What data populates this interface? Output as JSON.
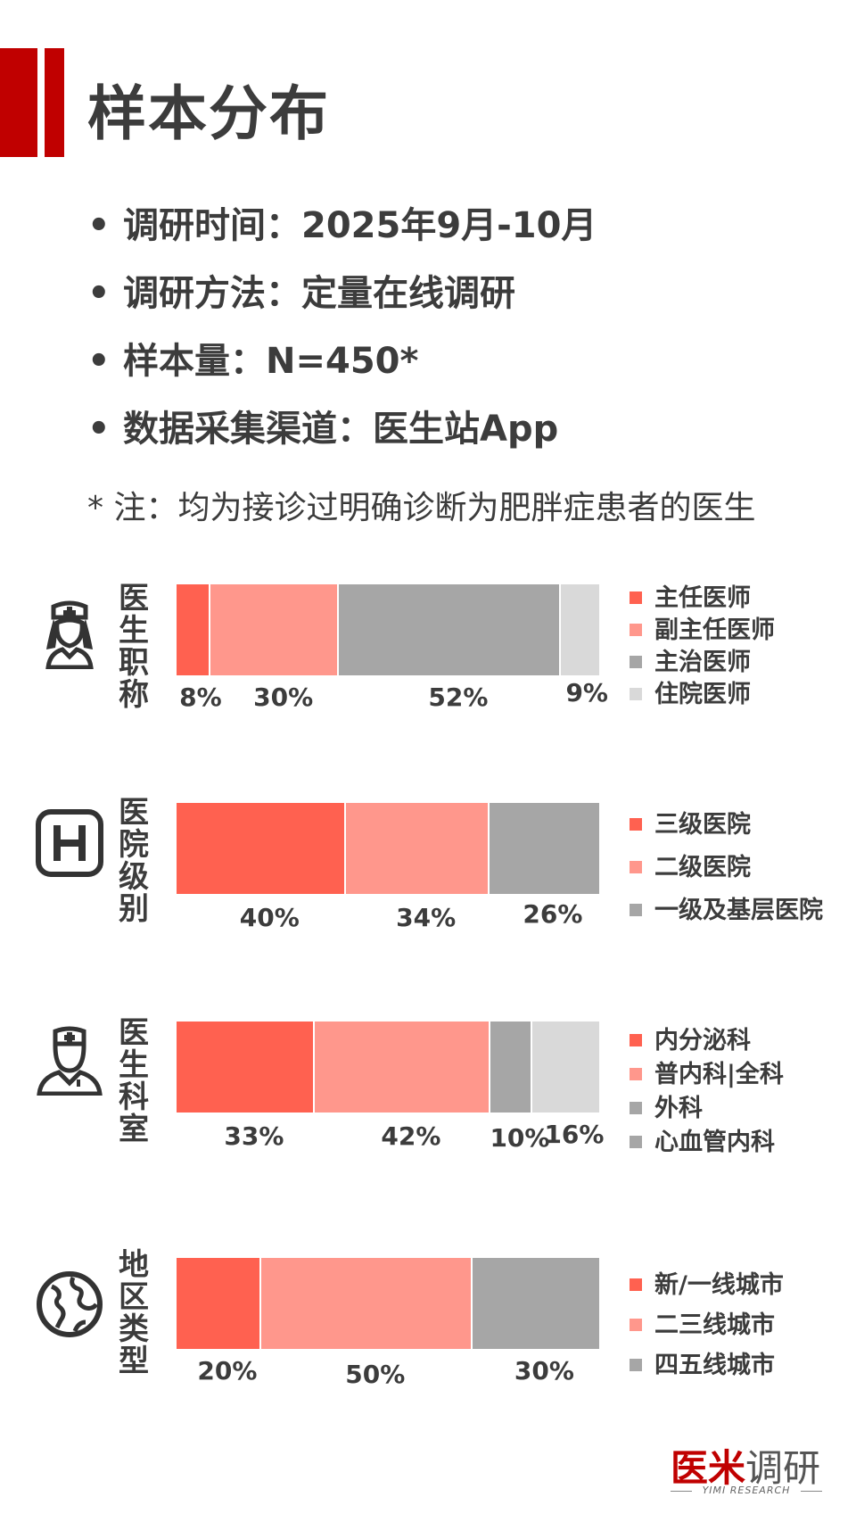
{
  "title": "样本分布",
  "bullets": [
    {
      "dot": "•",
      "text": "调研时间：2025年9月-10月"
    },
    {
      "dot": "•",
      "text": "调研方法：定量在线调研"
    },
    {
      "dot": "•",
      "text": "样本量：N=450*"
    },
    {
      "dot": "•",
      "text": "数据采集渠道：医生站App"
    }
  ],
  "note": "* 注：均为接诊过明确诊断为肥胖症患者的医生",
  "colors": {
    "c1": "#ff6150",
    "c2": "#ff978c",
    "c3": "#a6a6a6",
    "c4": "#d9d9d9"
  },
  "chart_data": [
    {
      "type": "bar",
      "label": "医生职称",
      "icon": "nurse-icon",
      "categories": [
        "主任医师",
        "副主任医师",
        "主治医师",
        "住院医师"
      ],
      "values": [
        8,
        30,
        52,
        9
      ],
      "value_labels": [
        "8%",
        "30%",
        "52%",
        "9%"
      ],
      "legend_colors": [
        "#ff6150",
        "#ff978c",
        "#a6a6a6",
        "#d9d9d9"
      ]
    },
    {
      "type": "bar",
      "label": "医院级别",
      "icon": "hospital-icon",
      "categories": [
        "三级医院",
        "二级医院",
        "一级及基层医院"
      ],
      "values": [
        40,
        34,
        26
      ],
      "value_labels": [
        "40%",
        "34%",
        "26%"
      ],
      "legend_colors": [
        "#ff6150",
        "#ff978c",
        "#a6a6a6"
      ]
    },
    {
      "type": "bar",
      "label": "医生科室",
      "icon": "doctor-icon",
      "categories": [
        "内分泌科",
        "普内科|全科",
        "外科",
        "心血管内科"
      ],
      "values": [
        33,
        42,
        10,
        16
      ],
      "value_labels": [
        "33%",
        "42%",
        "10%",
        "16%"
      ],
      "legend_colors": [
        "#ff6150",
        "#ff978c",
        "#a6a6a6",
        "#a6a6a6"
      ]
    },
    {
      "type": "bar",
      "label": "地区类型",
      "icon": "globe-icon",
      "categories": [
        "新/一线城市",
        "二三线城市",
        "四五线城市"
      ],
      "values": [
        20,
        50,
        30
      ],
      "value_labels": [
        "20%",
        "50%",
        "30%"
      ],
      "legend_colors": [
        "#ff6150",
        "#ff978c",
        "#a6a6a6"
      ]
    }
  ],
  "logo": {
    "main_red": "医米",
    "main_gray": "调研",
    "sub": "YIMI RESEARCH"
  }
}
